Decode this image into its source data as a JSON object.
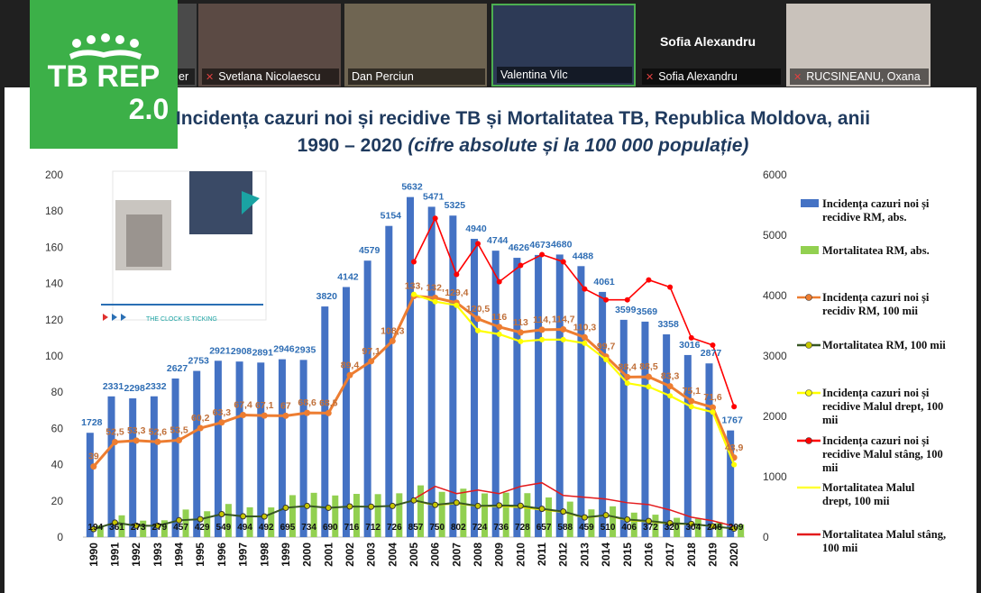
{
  "participants": [
    {
      "name": "er",
      "muted": false
    },
    {
      "name": "Svetlana Nicolaescu",
      "muted": true
    },
    {
      "name": "Dan Perciun",
      "muted": false
    },
    {
      "name": "Valentina Vilc",
      "muted": false
    },
    {
      "name": "Sofia Alexandru",
      "muted": true
    },
    {
      "name": "RUCSINEANU, Oxana",
      "muted": true
    }
  ],
  "active_speaker_name": "Sofia Alexandru",
  "logo": {
    "line1": "TB REP",
    "line2": "2.0"
  },
  "colors": {
    "bars_abs": "#4472c4",
    "bars_mort": "#92d050",
    "inc_100k": "#ed7d31",
    "mort_100k": "#375623",
    "right_bank_inc": "#ffff00",
    "left_bank_inc": "#ff0000",
    "logo_green": "#3cb048"
  },
  "chart_data": {
    "type": "bar",
    "title": "Incidența cazuri noi și recidive TB și Mortalitatea TB, Republica Moldova, anii 1990 – 2020",
    "subtitle": "(cifre absolute și la 100 000 populație)",
    "categories": [
      "1990",
      "1991",
      "1992",
      "1993",
      "1994",
      "1995",
      "1996",
      "1997",
      "1998",
      "1999",
      "2000",
      "2001",
      "2002",
      "2003",
      "2004",
      "2005",
      "2006",
      "2007",
      "2008",
      "2009",
      "2010",
      "2011",
      "2012",
      "2013",
      "2014",
      "2015",
      "2016",
      "2017",
      "2018",
      "2019",
      "2020"
    ],
    "y_left": {
      "min": 0,
      "max": 200,
      "ticks": [
        "0",
        "20",
        "40",
        "60",
        "80",
        "100",
        "120",
        "140",
        "160",
        "180",
        "200"
      ]
    },
    "y_right": {
      "min": 0,
      "max": 6000,
      "ticks": [
        "0",
        "1000",
        "2000",
        "3000",
        "4000",
        "5000",
        "6000"
      ]
    },
    "series": [
      {
        "name": "Incidența cazuri noi și recidive RM, abs.",
        "axis": "right",
        "kind": "bar",
        "values": [
          1728,
          2331,
          2298,
          2332,
          2627,
          2753,
          2921,
          2908,
          2891,
          2946,
          2935,
          3820,
          4142,
          4579,
          5154,
          5632,
          5471,
          5325,
          4940,
          4744,
          4626,
          4673,
          4680,
          4488,
          4061,
          3599,
          3569,
          3358,
          3016,
          2877,
          1767
        ],
        "labels": [
          "1728",
          "2331",
          "2298",
          "2332",
          "2627",
          "2753",
          "2921",
          "2908",
          "2891",
          "2946",
          "2935",
          "3820",
          "4142",
          "4579",
          "5154",
          "5632",
          "5471",
          "5325",
          "4940",
          "4744",
          "4626",
          "4673",
          "4680",
          "4488",
          "4061",
          "3599",
          "3569",
          "3358",
          "3016",
          "2877",
          "1767"
        ]
      },
      {
        "name": "Mortalitatea RM, abs.",
        "axis": "right",
        "kind": "bar",
        "values": [
          194,
          361,
          273,
          279,
          457,
          429,
          549,
          494,
          492,
          695,
          734,
          690,
          716,
          712,
          726,
          857,
          750,
          802,
          724,
          736,
          728,
          657,
          588,
          459,
          510,
          406,
          372,
          320,
          304,
          248,
          209
        ],
        "labels": [
          "194",
          "361",
          "273",
          "279",
          "457",
          "429",
          "549",
          "494",
          "492",
          "695",
          "734",
          "690",
          "716",
          "712",
          "726",
          "857",
          "750",
          "802",
          "724",
          "736",
          "728",
          "657",
          "588",
          "459",
          "510",
          "406",
          "372",
          "320",
          "304",
          "248",
          "209"
        ]
      },
      {
        "name": "Incidența cazuri noi și recidiv RM, 100 mii",
        "axis": "left",
        "kind": "line",
        "values": [
          39,
          52.5,
          53.3,
          52.6,
          53.5,
          60.2,
          63.3,
          67.4,
          67.1,
          67,
          68.6,
          68.5,
          89.4,
          97.1,
          108.3,
          133.1,
          132.1,
          129.4,
          120.5,
          116,
          113,
          114.5,
          114.7,
          110.3,
          99.7,
          88.4,
          88.5,
          83.3,
          75.1,
          71.6,
          43.9
        ],
        "labels": [
          "39",
          "52,5",
          "53,3",
          "52,6",
          "53,5",
          "60,2",
          "63,3",
          "67,4",
          "67,1",
          "67",
          "68,6",
          "68,5",
          "89,4",
          "97,1",
          "108,3",
          "133,",
          "132,",
          "129,4",
          "120,5",
          "116",
          "113",
          "114,",
          "114,7",
          "110,3",
          "99,7",
          "88,4",
          "88,5",
          "83,3",
          "75,1",
          "71,6",
          "43,9"
        ]
      },
      {
        "name": "Mortalitatea RM, 100 mii",
        "axis": "left",
        "kind": "line",
        "values": [
          4.4,
          8,
          6.3,
          6.3,
          9.3,
          9.9,
          12.7,
          11.5,
          11.4,
          16.2,
          17.2,
          16.2,
          16.9,
          16.8,
          17.2,
          20.3,
          17.8,
          19,
          17.2,
          17.5,
          17.3,
          15.6,
          14.1,
          10.9,
          12.1,
          9.7,
          8.9,
          7.7,
          7.3,
          6,
          4.7
        ]
      },
      {
        "name": "Incidența cazuri noi și recidive Malul drept, 100 mii",
        "axis": "left",
        "kind": "line",
        "values": [
          null,
          null,
          null,
          null,
          null,
          null,
          null,
          null,
          null,
          null,
          null,
          null,
          null,
          null,
          null,
          134,
          130,
          128,
          114,
          112,
          108,
          109,
          109,
          107,
          98,
          85,
          83,
          78,
          72,
          69,
          40
        ]
      },
      {
        "name": "Incidența cazuri noi și recidive  Malul stâng, 100 mii",
        "axis": "left",
        "kind": "line",
        "values": [
          null,
          null,
          null,
          null,
          null,
          null,
          null,
          null,
          null,
          null,
          null,
          null,
          null,
          null,
          null,
          152,
          176,
          145,
          162,
          141,
          150,
          156,
          152,
          137,
          131,
          131,
          142,
          138,
          110,
          106,
          72
        ]
      },
      {
        "name": "Mortalitatea Malul drept, 100 mii",
        "axis": "left",
        "kind": "line",
        "values": [
          null,
          null,
          null,
          null,
          null,
          null,
          null,
          null,
          null,
          null,
          null,
          null,
          null,
          null,
          null,
          20,
          17.5,
          18.5,
          17,
          17,
          16.5,
          15,
          13.8,
          10.5,
          12,
          9.2,
          8.5,
          7.4,
          7,
          6,
          4.5
        ]
      },
      {
        "name": "Mortalitatea Malul stâng, 100 mii",
        "axis": "left",
        "kind": "line",
        "values": [
          null,
          null,
          null,
          null,
          null,
          null,
          null,
          null,
          null,
          null,
          null,
          null,
          null,
          null,
          null,
          21,
          28,
          24,
          26,
          24,
          28,
          30,
          23,
          22,
          21,
          19,
          18,
          15,
          11,
          9,
          6
        ]
      }
    ],
    "legend_position": "right",
    "grid": false
  }
}
